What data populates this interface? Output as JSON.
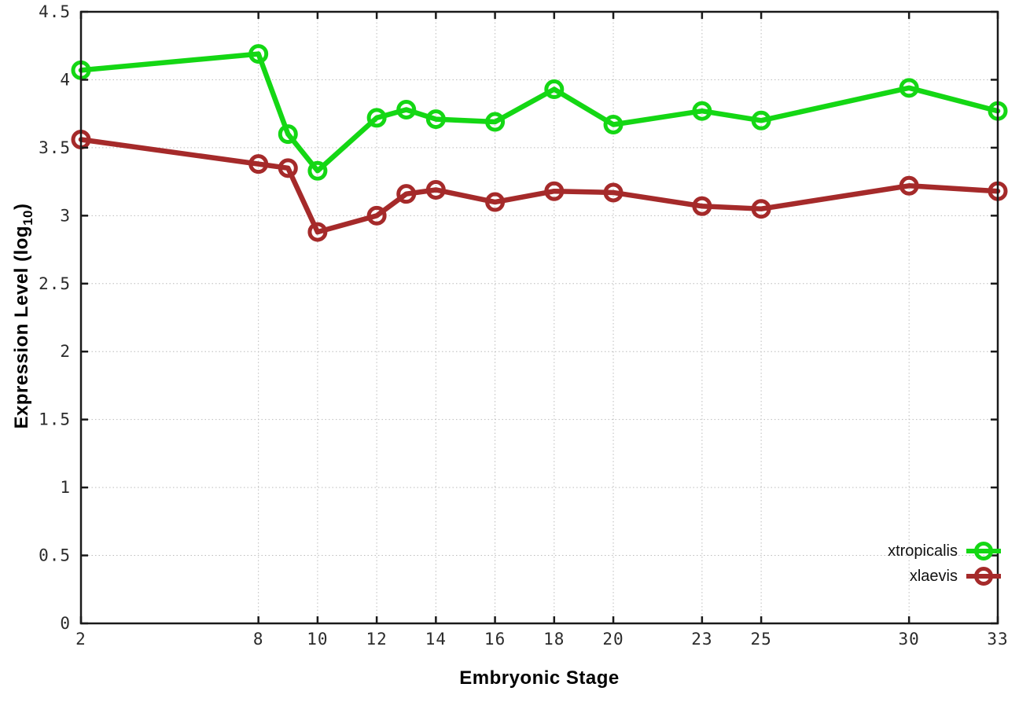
{
  "figure": {
    "background": "#ffffff",
    "axis_color": "#1a1a1a",
    "grid_color": "#bcbcbc",
    "tick_label_color": "#2b2b2b"
  },
  "chart_data": {
    "type": "line",
    "title": "",
    "xlabel": "Embryonic Stage",
    "ylabel": "Expression Level (log10)",
    "ylabel_prefix": "Expression Level (log",
    "ylabel_sub": "10",
    "ylabel_suffix": ")",
    "xlim": [
      2,
      33
    ],
    "ylim": [
      0,
      4.5
    ],
    "x_ticks": [
      2,
      8,
      10,
      12,
      14,
      16,
      18,
      20,
      23,
      25,
      30,
      33
    ],
    "y_ticks": [
      0,
      0.5,
      1,
      1.5,
      2,
      2.5,
      3,
      3.5,
      4,
      4.5
    ],
    "grid": true,
    "grid_style": "dotted",
    "legend_position": "bottom-right",
    "marker": "open-circle",
    "x": [
      2,
      8,
      9,
      10,
      12,
      13,
      14,
      16,
      18,
      20,
      23,
      25,
      30,
      33
    ],
    "series": [
      {
        "name": "xtropicalis",
        "color": "#14d714",
        "values": [
          4.07,
          4.19,
          3.6,
          3.33,
          3.72,
          3.78,
          3.71,
          3.69,
          3.93,
          3.67,
          3.77,
          3.7,
          3.94,
          3.77
        ]
      },
      {
        "name": "xlaevis",
        "color": "#a52a2a",
        "values": [
          3.56,
          3.38,
          3.35,
          2.88,
          3.0,
          3.16,
          3.19,
          3.1,
          3.18,
          3.17,
          3.07,
          3.05,
          3.22,
          3.18
        ]
      }
    ]
  }
}
